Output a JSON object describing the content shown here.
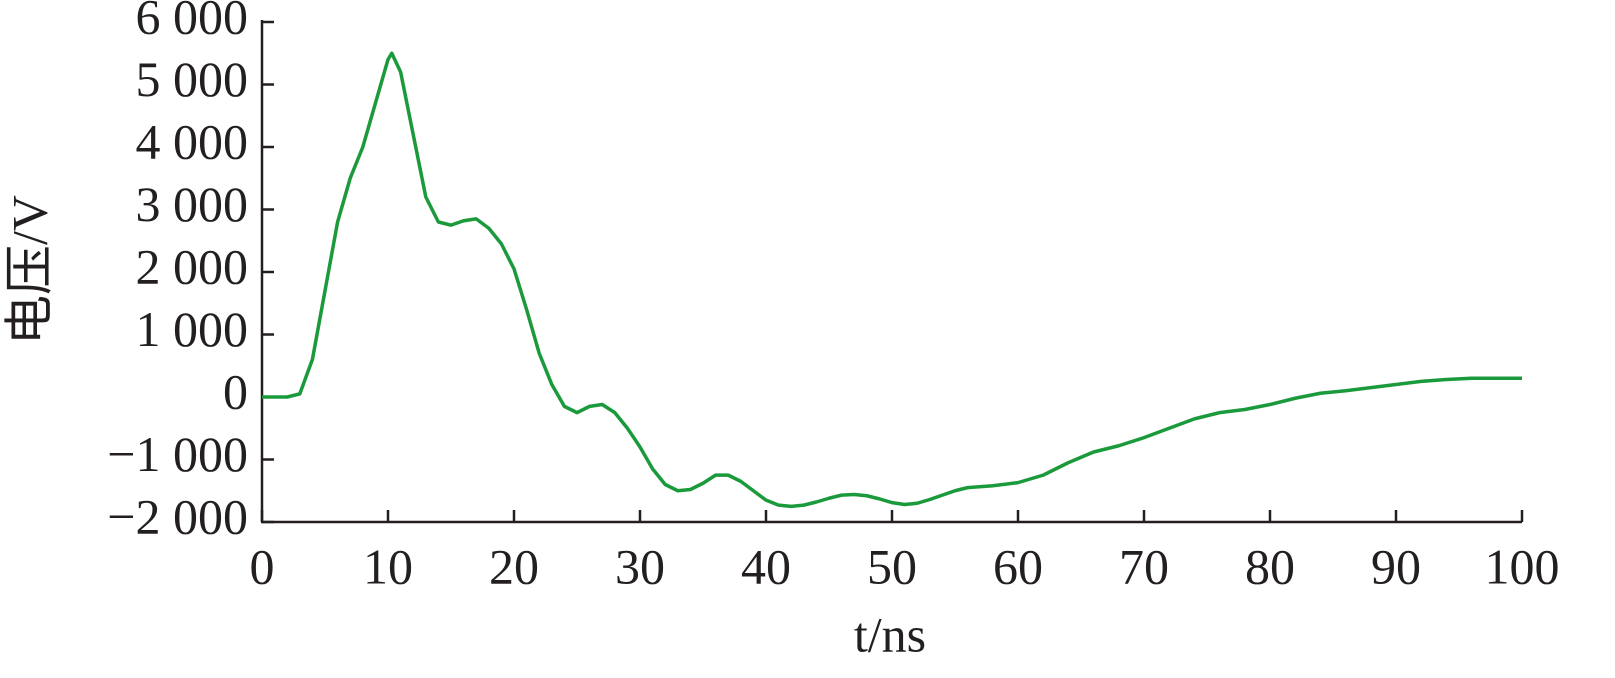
{
  "chart_data": {
    "type": "line",
    "x_label": "t/ns",
    "y_label": "电压/V",
    "x": [
      0,
      1,
      2,
      3,
      4,
      5,
      6,
      7,
      8,
      9,
      10,
      10.3,
      11,
      12,
      13,
      14,
      15,
      16,
      17,
      18,
      19,
      20,
      21,
      22,
      23,
      24,
      25,
      26,
      27,
      28,
      29,
      30,
      31,
      32,
      33,
      34,
      35,
      36,
      37,
      38,
      39,
      40,
      41,
      42,
      43,
      44,
      45,
      46,
      47,
      48,
      49,
      50,
      51,
      52,
      53,
      54,
      55,
      56,
      58,
      60,
      62,
      64,
      66,
      68,
      70,
      72,
      74,
      76,
      78,
      80,
      82,
      84,
      86,
      88,
      90,
      92,
      94,
      96,
      98,
      100
    ],
    "series": [
      {
        "color": "#1b9a3c",
        "values": [
          0,
          0,
          0,
          50,
          600,
          1700,
          2800,
          3500,
          4000,
          4700,
          5400,
          5500,
          5200,
          4200,
          3200,
          2800,
          2750,
          2820,
          2850,
          2700,
          2450,
          2050,
          1400,
          700,
          200,
          -150,
          -250,
          -150,
          -120,
          -250,
          -500,
          -800,
          -1150,
          -1400,
          -1500,
          -1480,
          -1380,
          -1250,
          -1250,
          -1350,
          -1500,
          -1650,
          -1730,
          -1750,
          -1730,
          -1680,
          -1620,
          -1570,
          -1560,
          -1580,
          -1630,
          -1690,
          -1720,
          -1700,
          -1640,
          -1570,
          -1500,
          -1450,
          -1420,
          -1370,
          -1250,
          -1050,
          -880,
          -780,
          -650,
          -500,
          -350,
          -250,
          -200,
          -120,
          -20,
          60,
          100,
          150,
          200,
          250,
          280,
          300,
          300,
          300
        ]
      }
    ],
    "xlim": [
      0,
      100
    ],
    "xticks": [
      0,
      10,
      20,
      30,
      40,
      50,
      60,
      70,
      80,
      90,
      100
    ],
    "ylim": [
      -2000,
      6000
    ],
    "yticks": [
      {
        "value": -2000,
        "label": "−2 000"
      },
      {
        "value": -1000,
        "label": "−1 000"
      },
      0,
      {
        "value": 1000,
        "label": "1 000"
      },
      {
        "value": 2000,
        "label": "2 000"
      },
      {
        "value": 3000,
        "label": "3 000"
      },
      {
        "value": 4000,
        "label": "4 000"
      },
      {
        "value": 5000,
        "label": "5 000"
      },
      {
        "value": 6000,
        "label": "6 000"
      }
    ],
    "grid": false
  }
}
